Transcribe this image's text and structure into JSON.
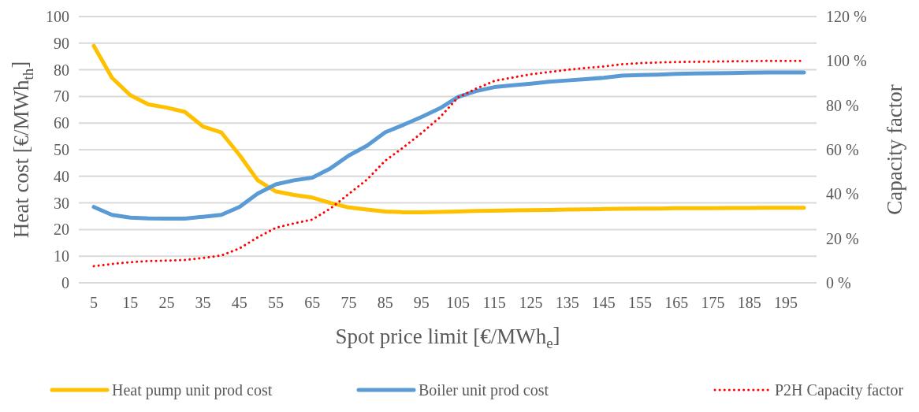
{
  "chart_data": {
    "type": "line",
    "xlabel": "Spot price limit [€/MWh$_{e}$]",
    "ylabel": "Heat cost [€/MWh$_{th}$]",
    "y2label": "Capacity factor",
    "categories": [
      "5",
      null,
      "15",
      null,
      "25",
      null,
      "35",
      null,
      "45",
      null,
      "55",
      null,
      "65",
      null,
      "75",
      null,
      "85",
      null,
      "95",
      null,
      "105",
      null,
      "115",
      null,
      "125",
      null,
      "135",
      null,
      "145",
      null,
      "155",
      null,
      "165",
      null,
      "175",
      null,
      "185",
      null,
      "195",
      null
    ],
    "series": [
      {
        "name": "Heat pump unit prod cost",
        "color": "#ffc000",
        "line_style": "solid",
        "values": [
          89,
          77,
          70.5,
          67,
          65.8,
          64.2,
          58.7,
          56.5,
          48,
          38.5,
          34.3,
          33,
          32,
          30,
          28.3,
          27.5,
          26.8,
          26.5,
          26.5,
          26.6,
          26.8,
          27,
          27.1,
          27.2,
          27.3,
          27.4,
          27.5,
          27.6,
          27.7,
          27.8,
          27.9,
          27.9,
          28,
          28,
          28,
          28.1,
          28.1,
          28.2,
          28.2,
          28.2
        ]
      },
      {
        "name": "Boiler unit prod cost",
        "color": "#5b9bd5",
        "line_style": "solid",
        "values": [
          28.5,
          25.5,
          24.5,
          24.2,
          24.1,
          24.1,
          24.8,
          25.5,
          28.5,
          33.5,
          37,
          38.5,
          39.5,
          43,
          47.8,
          51.5,
          56.5,
          59.3,
          62.3,
          65.5,
          69.8,
          72,
          73.5,
          74.2,
          74.8,
          75.5,
          76,
          76.5,
          77,
          77.8,
          78,
          78.2,
          78.5,
          78.6,
          78.7,
          78.8,
          78.9,
          79,
          79,
          79
        ]
      },
      {
        "name": "P2H Capacity factor",
        "color": "#ff0000",
        "line_style": "dotted",
        "axis": "y2",
        "values": [
          7.5,
          8.5,
          9.3,
          9.8,
          10,
          10.3,
          11.2,
          12.3,
          15.5,
          20.5,
          24.8,
          26.8,
          28.5,
          33.5,
          40,
          46.5,
          55,
          61,
          67.5,
          74.5,
          83.5,
          87.5,
          91,
          92.5,
          94,
          95,
          96,
          96.8,
          97.5,
          98.5,
          99,
          99.3,
          99.5,
          99.6,
          99.7,
          99.8,
          99.9,
          100,
          100,
          100
        ]
      }
    ],
    "ylim": [
      0,
      100
    ],
    "yticks": [
      0,
      10,
      20,
      30,
      40,
      50,
      60,
      70,
      80,
      90,
      100
    ],
    "y2lim": [
      0,
      120
    ],
    "y2ticks": [
      {
        "value": 0,
        "label": "0 %"
      },
      {
        "value": 20,
        "label": "20 %"
      },
      {
        "value": 40,
        "label": "40 %"
      },
      {
        "value": 60,
        "label": "60 %"
      },
      {
        "value": 80,
        "label": "80 %"
      },
      {
        "value": 100,
        "label": "100 %"
      },
      {
        "value": 120,
        "label": "120 %"
      }
    ],
    "grid": "y",
    "legend": "bottom"
  }
}
